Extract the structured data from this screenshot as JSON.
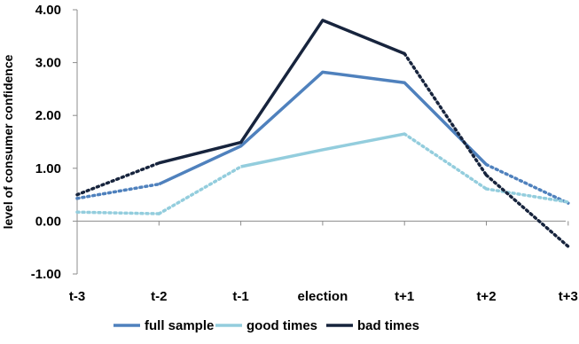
{
  "chart_data": {
    "type": "line",
    "title": "",
    "xlabel": "",
    "ylabel": "level of consumer confidence",
    "categories": [
      "t-3",
      "t-2",
      "t-1",
      "election",
      "t+1",
      "t+2",
      "t+3"
    ],
    "ylim": [
      -1.0,
      4.0
    ],
    "yticks": [
      "-1.00",
      "0.00",
      "1.00",
      "2.00",
      "3.00",
      "4.00"
    ],
    "grid": false,
    "legend_position": "bottom",
    "series": [
      {
        "name": "full sample",
        "color": "#4f81bd",
        "values": [
          0.43,
          0.7,
          1.42,
          2.82,
          2.62,
          1.07,
          0.34
        ],
        "solid_range": [
          1,
          5
        ],
        "dotted_segments": [
          [
            0,
            1
          ],
          [
            5,
            6
          ]
        ]
      },
      {
        "name": "good times",
        "color": "#93cddd",
        "values": [
          0.17,
          0.14,
          1.03,
          1.35,
          1.65,
          0.61,
          0.36
        ],
        "solid_range": [
          2,
          4
        ],
        "dotted_segments": [
          [
            0,
            1
          ],
          [
            1,
            2
          ],
          [
            4,
            5
          ],
          [
            5,
            6
          ]
        ]
      },
      {
        "name": "bad times",
        "color": "#17243d",
        "values": [
          0.5,
          1.1,
          1.49,
          3.8,
          3.17,
          0.87,
          -0.48
        ],
        "solid_range": [
          1,
          4
        ],
        "dotted_segments": [
          [
            0,
            1
          ],
          [
            4,
            5
          ],
          [
            5,
            6
          ]
        ]
      }
    ]
  }
}
